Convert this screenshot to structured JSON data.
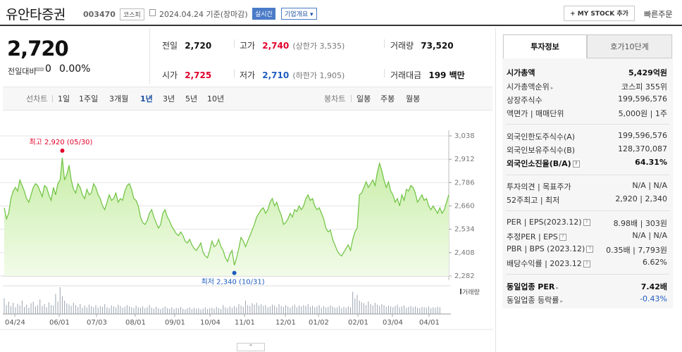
{
  "header": {
    "name": "유안타증권",
    "code": "003470",
    "market": "코스피",
    "date": "2024.04.24",
    "basis": "기준(장마감)",
    "live_badge": "실시간",
    "info_button": "기업개요",
    "mystock_button": "MY STOCK 추가",
    "quick_order": "빠른주문"
  },
  "price": {
    "current": "2,720",
    "change_label": "전일대비",
    "change": "0",
    "change_pct": "0.00%"
  },
  "stats": {
    "prev_label": "전일",
    "prev": "2,720",
    "high_label": "고가",
    "high": "2,740",
    "upper_limit": "(상한가 3,535)",
    "volume_label": "거래량",
    "volume": "73,520",
    "open_label": "시가",
    "open": "2,725",
    "low_label": "저가",
    "low": "2,710",
    "lower_limit": "(하한가 1,905)",
    "amount_label": "거래대금",
    "amount": "199 백만"
  },
  "tabs": {
    "line_label": "선차트",
    "line_periods": [
      "1일",
      "1주일",
      "3개월",
      "1년",
      "3년",
      "5년",
      "10년"
    ],
    "selected": "1년",
    "candle_label": "봉차트",
    "candle_periods": [
      "일봉",
      "주봉",
      "월봉"
    ]
  },
  "chart_data": {
    "type": "area",
    "y_ticks": [
      "3,038",
      "2,912",
      "2,786",
      "2,660",
      "2,534",
      "2,408",
      "2,282"
    ],
    "ylim": [
      2282,
      3038
    ],
    "x_ticks": [
      "04/24",
      "06/01",
      "07/03",
      "08/01",
      "09/01",
      "10/04",
      "11/01",
      "12/01",
      "01/02",
      "02/01",
      "03/04",
      "04/01"
    ],
    "high_annotation": "최고 2,920 (05/30)",
    "low_annotation": "최저 2,340 (10/31)",
    "volume_legend": "거래량",
    "colors": {
      "line": "#6dc23f",
      "fill_top": "#c7eda6",
      "fill_bottom": "#f2fbe9",
      "marker_high": "#e1002a",
      "marker_low": "#1e5cbf"
    },
    "series": [
      {
        "values": [
          2650,
          2590,
          2620,
          2700,
          2740,
          2760,
          2740,
          2800,
          2770,
          2740,
          2700,
          2680,
          2720,
          2760,
          2780,
          2770,
          2740,
          2710,
          2770,
          2760,
          2720,
          2690,
          2760,
          2720,
          2780,
          2800,
          2920,
          2800,
          2830,
          2880,
          2800,
          2750,
          2730,
          2780,
          2760,
          2720,
          2700,
          2750,
          2720,
          2730,
          2780,
          2760,
          2720,
          2700,
          2660,
          2640,
          2680,
          2720,
          2690,
          2700,
          2730,
          2680,
          2700,
          2690,
          2740,
          2770,
          2780,
          2750,
          2700,
          2690,
          2660,
          2600,
          2570,
          2560,
          2580,
          2620,
          2640,
          2600,
          2570,
          2540,
          2560,
          2620,
          2640,
          2600,
          2580,
          2550,
          2530,
          2510,
          2500,
          2520,
          2500,
          2470,
          2460,
          2480,
          2450,
          2430,
          2420,
          2440,
          2460,
          2410,
          2390,
          2380,
          2420,
          2470,
          2440,
          2450,
          2480,
          2440,
          2420,
          2380,
          2360,
          2400,
          2420,
          2340,
          2380,
          2430,
          2490,
          2470,
          2440,
          2470,
          2500,
          2530,
          2560,
          2600,
          2620,
          2640,
          2650,
          2620,
          2640,
          2680,
          2700,
          2660,
          2680,
          2640,
          2610,
          2560,
          2570,
          2590,
          2620,
          2600,
          2640,
          2630,
          2660,
          2640,
          2660,
          2700,
          2720,
          2690,
          2700,
          2660,
          2640,
          2650,
          2620,
          2590,
          2540,
          2520,
          2530,
          2480,
          2450,
          2420,
          2400,
          2390,
          2410,
          2430,
          2450,
          2420,
          2480,
          2520,
          2540,
          2720,
          2730,
          2760,
          2790,
          2760,
          2780,
          2800,
          2770,
          2840,
          2890,
          2850,
          2800,
          2760,
          2790,
          2740,
          2720,
          2680,
          2700,
          2660,
          2720,
          2690,
          2750,
          2740,
          2770,
          2760,
          2730,
          2680,
          2700,
          2720,
          2690,
          2700,
          2660,
          2640,
          2660,
          2640,
          2620,
          2650,
          2620,
          2640,
          2680,
          2720
        ]
      },
      {
        "name": "거래량",
        "values": [
          70,
          40,
          55,
          35,
          50,
          30,
          45,
          38,
          60,
          32,
          42,
          28,
          48,
          55,
          34,
          40,
          65,
          36,
          44,
          30,
          52,
          40,
          38,
          90,
          55,
          120,
          80,
          60,
          48,
          42,
          36,
          50,
          40,
          32,
          45,
          28,
          38,
          30,
          42,
          35,
          30,
          40,
          28,
          36,
          32,
          44,
          30,
          26,
          38,
          34,
          30,
          42,
          36,
          28,
          32,
          40,
          34,
          30,
          26,
          38,
          30,
          28,
          34,
          26,
          30,
          40,
          28,
          24,
          32,
          26,
          22,
          28,
          34,
          26,
          24,
          30,
          22,
          28,
          26,
          32,
          24,
          20,
          26,
          30,
          22,
          28,
          24,
          26,
          20,
          24,
          30,
          22,
          26,
          28,
          24,
          32,
          26,
          22,
          40,
          30,
          26,
          34,
          28,
          36,
          30,
          44,
          38,
          32,
          60,
          40,
          36,
          48,
          42,
          50,
          38,
          44,
          36,
          40,
          30,
          34,
          42,
          38,
          30,
          44,
          36,
          32,
          40,
          34,
          28,
          36,
          42,
          30,
          38,
          34,
          40,
          36,
          44,
          32,
          38,
          30,
          34,
          40,
          28,
          36,
          30,
          32,
          38,
          34,
          28,
          30,
          36,
          26,
          32,
          28,
          34,
          30,
          100,
          70,
          86,
          60,
          52,
          48,
          40,
          56,
          44,
          38,
          50,
          42,
          36,
          44,
          40,
          32,
          38,
          34,
          30,
          36,
          42,
          30,
          34,
          38,
          28,
          32,
          36,
          30,
          34,
          28,
          26,
          32,
          30,
          28,
          34,
          26,
          30,
          28,
          32,
          30
        ]
      }
    ]
  },
  "panel": {
    "tab_active": "투자정보",
    "tab_other": "호가10단계",
    "rows": [
      {
        "label": "시가총액",
        "value": "5,429억원",
        "bold": true
      },
      {
        "label": "시가총액순위",
        "value": "코스피 355위",
        "arrow": true
      },
      {
        "label": "상장주식수",
        "value": "199,596,576"
      },
      {
        "label": "액면가 | 매매단위",
        "value": "5,000원 | 1주"
      },
      {
        "label": "외국인한도주식수(A)",
        "value": "199,596,576"
      },
      {
        "label": "외국인보유주식수(B)",
        "value": "128,370,087"
      },
      {
        "label": "외국인소진율(B/A)",
        "value": "64.31%",
        "bold": true,
        "q": true
      },
      {
        "label": "투자의견 | 목표주가",
        "value": "N/A | N/A"
      },
      {
        "label": "52주최고 | 최저",
        "value": "2,920 | 2,340"
      },
      {
        "label": "PER | EPS(2023.12)",
        "value": "8.98배 | 303원",
        "q": true
      },
      {
        "label": "추정PER | EPS",
        "value": "N/A | N/A",
        "q": true
      },
      {
        "label": "PBR | BPS (2023.12)",
        "value": "0.35배 | 7,793원",
        "q": true
      },
      {
        "label": "배당수익률 | 2023.12",
        "value": "6.62%",
        "q": true
      },
      {
        "label": "동일업종 PER",
        "value": "7.42배",
        "bold": true,
        "arrow": true
      },
      {
        "label": "동일업종 등락률",
        "value": "-0.43%",
        "arrow": true,
        "blue": true
      }
    ]
  }
}
